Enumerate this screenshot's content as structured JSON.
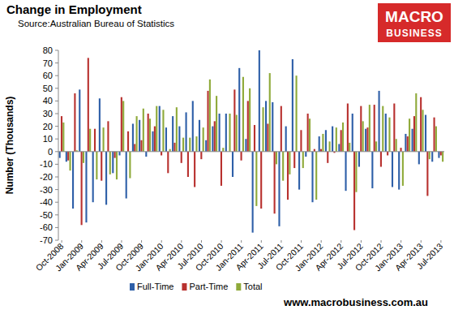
{
  "chart_data": {
    "type": "bar",
    "title": "Change in Employment",
    "subtitle": "Source:Australian Bureau of Statistics",
    "y_label": "Number (Thousands)",
    "annotations": [
      "MACRO",
      "BUSINESS",
      "www.macrobusiness.com.au"
    ],
    "categories": [
      "Oct-2008",
      null,
      null,
      "Jan-2009",
      null,
      null,
      "Apr-2009",
      null,
      null,
      "Jul-2009",
      null,
      null,
      "Oct-2009",
      null,
      null,
      "Jan-2010",
      null,
      null,
      "Apr-2010",
      null,
      null,
      "Jul-2010",
      null,
      null,
      "Oct-2010",
      null,
      null,
      "Jan-2011",
      null,
      null,
      "Apr-2011",
      null,
      null,
      "Jul-2011",
      null,
      null,
      "Oct-2011",
      null,
      null,
      "Jan-2012",
      null,
      null,
      "Apr-2012",
      null,
      null,
      "Jul-2012",
      null,
      null,
      "Oct-2012",
      null,
      null,
      "Jan-2013",
      null,
      null,
      "Apr-2013",
      null,
      null,
      "Jul-2013"
    ],
    "series": [
      {
        "name": "Full-Time",
        "color": "#2e5fa8",
        "values": [
          -5,
          -8,
          -45,
          49,
          -56,
          -40,
          42,
          -42,
          -17,
          -3,
          -37,
          22,
          25,
          -4,
          16,
          36,
          19,
          28,
          20,
          31,
          40,
          25,
          9,
          20,
          30,
          30,
          -20,
          66,
          10,
          -64,
          80,
          40,
          39,
          -59,
          20,
          73,
          -30,
          -4,
          -40,
          12,
          17,
          20,
          6,
          -31,
          30,
          -12,
          18,
          -29,
          48,
          30,
          -28,
          -30,
          14,
          18,
          -10,
          29,
          -8,
          -5
        ]
      },
      {
        "name": "Part-Time",
        "color": "#b8312f",
        "values": [
          28,
          -7,
          46,
          -58,
          74,
          18,
          -23,
          24,
          -5,
          43,
          16,
          6,
          9,
          30,
          20,
          -3,
          -17,
          7,
          -9,
          -20,
          -28,
          -6,
          48,
          24,
          -27,
          0,
          49,
          -7,
          40,
          21,
          -45,
          22,
          -49,
          36,
          -38,
          -13,
          17,
          30,
          2,
          2,
          -9,
          -1,
          17,
          38,
          -62,
          36,
          19,
          37,
          -12,
          -3,
          38,
          3,
          12,
          28,
          43,
          -35,
          27,
          -3
        ]
      },
      {
        "name": "Total",
        "color": "#8faa3a",
        "values": [
          23,
          -15,
          1,
          -9,
          18,
          -22,
          19,
          -18,
          -22,
          40,
          -21,
          28,
          34,
          26,
          36,
          33,
          2,
          35,
          11,
          11,
          12,
          19,
          57,
          44,
          3,
          30,
          29,
          59,
          50,
          -43,
          35,
          62,
          -10,
          -23,
          -18,
          60,
          -13,
          26,
          -38,
          14,
          8,
          19,
          23,
          7,
          -32,
          24,
          37,
          8,
          36,
          27,
          10,
          -27,
          26,
          46,
          33,
          -6,
          20,
          -8
        ]
      }
    ],
    "ylim": [
      -70,
      80
    ],
    "yticks": [
      -70,
      -60,
      -50,
      -40,
      -30,
      -20,
      -10,
      0,
      10,
      20,
      30,
      40,
      50,
      60,
      70,
      80
    ],
    "grid": false,
    "legend": "bottom"
  }
}
